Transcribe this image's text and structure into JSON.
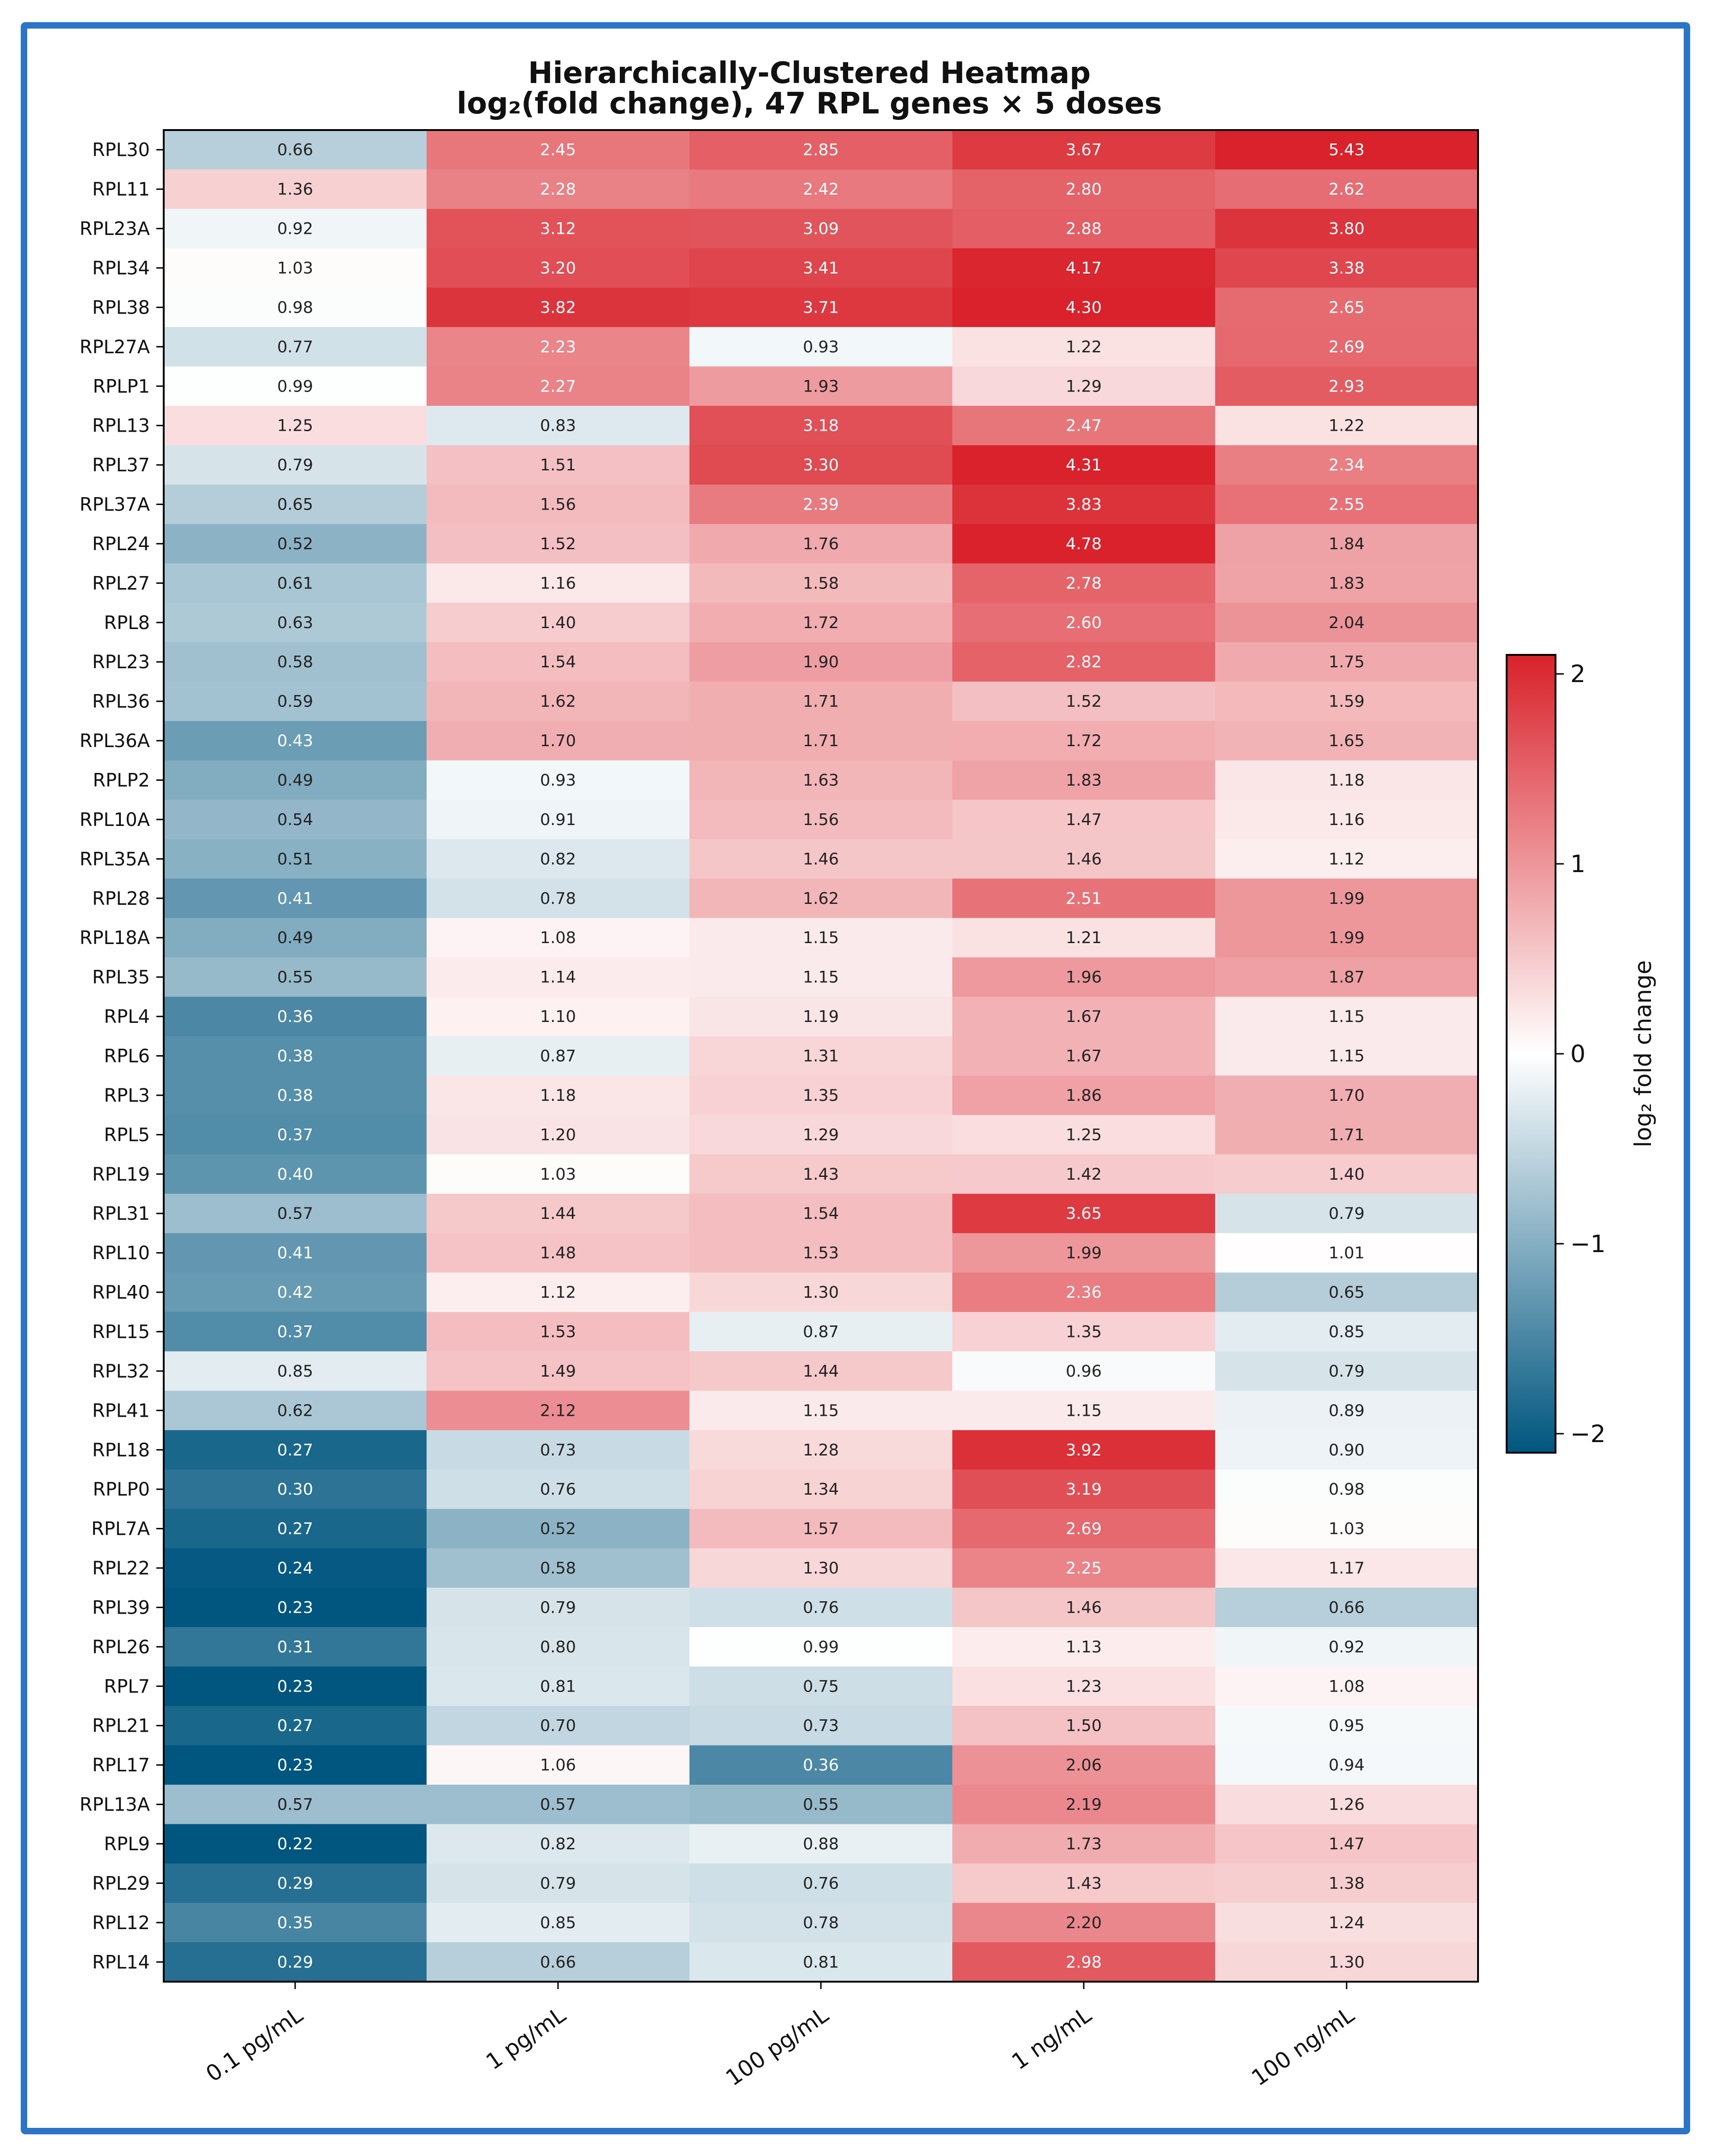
{
  "chart_data": {
    "type": "heatmap",
    "title": "Hierarchically-Clustered Heatmap",
    "subtitle": "log₂(fold change), 47 RPL genes × 5 doses",
    "colorbar_label": "log₂ fold change",
    "colorbar_ticks": [
      2,
      1,
      0,
      -1,
      -2
    ],
    "colorbar_tick_labels": [
      "2",
      "1",
      "0",
      "−1",
      "−2"
    ],
    "color_range": [
      -2.1,
      2.1
    ],
    "colors": {
      "low": "#00567f",
      "mid": "#ffffff",
      "high": "#d9222b"
    },
    "columns": [
      "0.1 pg/mL",
      "1 pg/mL",
      "100 pg/mL",
      "1 ng/mL",
      "100 ng/mL"
    ],
    "rows": [
      {
        "gene": "RPL30",
        "values": [
          "0.66",
          "2.45",
          "2.85",
          "3.67",
          "5.43"
        ]
      },
      {
        "gene": "RPL11",
        "values": [
          "1.36",
          "2.28",
          "2.42",
          "2.80",
          "2.62"
        ]
      },
      {
        "gene": "RPL23A",
        "values": [
          "0.92",
          "3.12",
          "3.09",
          "2.88",
          "3.80"
        ]
      },
      {
        "gene": "RPL34",
        "values": [
          "1.03",
          "3.20",
          "3.41",
          "4.17",
          "3.38"
        ]
      },
      {
        "gene": "RPL38",
        "values": [
          "0.98",
          "3.82",
          "3.71",
          "4.30",
          "2.65"
        ]
      },
      {
        "gene": "RPL27A",
        "values": [
          "0.77",
          "2.23",
          "0.93",
          "1.22",
          "2.69"
        ]
      },
      {
        "gene": "RPLP1",
        "values": [
          "0.99",
          "2.27",
          "1.93",
          "1.29",
          "2.93"
        ]
      },
      {
        "gene": "RPL13",
        "values": [
          "1.25",
          "0.83",
          "3.18",
          "2.47",
          "1.22"
        ]
      },
      {
        "gene": "RPL37",
        "values": [
          "0.79",
          "1.51",
          "3.30",
          "4.31",
          "2.34"
        ]
      },
      {
        "gene": "RPL37A",
        "values": [
          "0.65",
          "1.56",
          "2.39",
          "3.83",
          "2.55"
        ]
      },
      {
        "gene": "RPL24",
        "values": [
          "0.52",
          "1.52",
          "1.76",
          "4.78",
          "1.84"
        ]
      },
      {
        "gene": "RPL27",
        "values": [
          "0.61",
          "1.16",
          "1.58",
          "2.78",
          "1.83"
        ]
      },
      {
        "gene": "RPL8",
        "values": [
          "0.63",
          "1.40",
          "1.72",
          "2.60",
          "2.04"
        ]
      },
      {
        "gene": "RPL23",
        "values": [
          "0.58",
          "1.54",
          "1.90",
          "2.82",
          "1.75"
        ]
      },
      {
        "gene": "RPL36",
        "values": [
          "0.59",
          "1.62",
          "1.71",
          "1.52",
          "1.59"
        ]
      },
      {
        "gene": "RPL36A",
        "values": [
          "0.43",
          "1.70",
          "1.71",
          "1.72",
          "1.65"
        ]
      },
      {
        "gene": "RPLP2",
        "values": [
          "0.49",
          "0.93",
          "1.63",
          "1.83",
          "1.18"
        ]
      },
      {
        "gene": "RPL10A",
        "values": [
          "0.54",
          "0.91",
          "1.56",
          "1.47",
          "1.16"
        ]
      },
      {
        "gene": "RPL35A",
        "values": [
          "0.51",
          "0.82",
          "1.46",
          "1.46",
          "1.12"
        ]
      },
      {
        "gene": "RPL28",
        "values": [
          "0.41",
          "0.78",
          "1.62",
          "2.51",
          "1.99"
        ]
      },
      {
        "gene": "RPL18A",
        "values": [
          "0.49",
          "1.08",
          "1.15",
          "1.21",
          "1.99"
        ]
      },
      {
        "gene": "RPL35",
        "values": [
          "0.55",
          "1.14",
          "1.15",
          "1.96",
          "1.87"
        ]
      },
      {
        "gene": "RPL4",
        "values": [
          "0.36",
          "1.10",
          "1.19",
          "1.67",
          "1.15"
        ]
      },
      {
        "gene": "RPL6",
        "values": [
          "0.38",
          "0.87",
          "1.31",
          "1.67",
          "1.15"
        ]
      },
      {
        "gene": "RPL3",
        "values": [
          "0.38",
          "1.18",
          "1.35",
          "1.86",
          "1.70"
        ]
      },
      {
        "gene": "RPL5",
        "values": [
          "0.37",
          "1.20",
          "1.29",
          "1.25",
          "1.71"
        ]
      },
      {
        "gene": "RPL19",
        "values": [
          "0.40",
          "1.03",
          "1.43",
          "1.42",
          "1.40"
        ]
      },
      {
        "gene": "RPL31",
        "values": [
          "0.57",
          "1.44",
          "1.54",
          "3.65",
          "0.79"
        ]
      },
      {
        "gene": "RPL10",
        "values": [
          "0.41",
          "1.48",
          "1.53",
          "1.99",
          "1.01"
        ]
      },
      {
        "gene": "RPL40",
        "values": [
          "0.42",
          "1.12",
          "1.30",
          "2.36",
          "0.65"
        ]
      },
      {
        "gene": "RPL15",
        "values": [
          "0.37",
          "1.53",
          "0.87",
          "1.35",
          "0.85"
        ]
      },
      {
        "gene": "RPL32",
        "values": [
          "0.85",
          "1.49",
          "1.44",
          "0.96",
          "0.79"
        ]
      },
      {
        "gene": "RPL41",
        "values": [
          "0.62",
          "2.12",
          "1.15",
          "1.15",
          "0.89"
        ]
      },
      {
        "gene": "RPL18",
        "values": [
          "0.27",
          "0.73",
          "1.28",
          "3.92",
          "0.90"
        ]
      },
      {
        "gene": "RPLP0",
        "values": [
          "0.30",
          "0.76",
          "1.34",
          "3.19",
          "0.98"
        ]
      },
      {
        "gene": "RPL7A",
        "values": [
          "0.27",
          "0.52",
          "1.57",
          "2.69",
          "1.03"
        ]
      },
      {
        "gene": "RPL22",
        "values": [
          "0.24",
          "0.58",
          "1.30",
          "2.25",
          "1.17"
        ]
      },
      {
        "gene": "RPL39",
        "values": [
          "0.23",
          "0.79",
          "0.76",
          "1.46",
          "0.66"
        ]
      },
      {
        "gene": "RPL26",
        "values": [
          "0.31",
          "0.80",
          "0.99",
          "1.13",
          "0.92"
        ]
      },
      {
        "gene": "RPL7",
        "values": [
          "0.23",
          "0.81",
          "0.75",
          "1.23",
          "1.08"
        ]
      },
      {
        "gene": "RPL21",
        "values": [
          "0.27",
          "0.70",
          "0.73",
          "1.50",
          "0.95"
        ]
      },
      {
        "gene": "RPL17",
        "values": [
          "0.23",
          "1.06",
          "0.36",
          "2.06",
          "0.94"
        ]
      },
      {
        "gene": "RPL13A",
        "values": [
          "0.57",
          "0.57",
          "0.55",
          "2.19",
          "1.26"
        ]
      },
      {
        "gene": "RPL9",
        "values": [
          "0.22",
          "0.82",
          "0.88",
          "1.73",
          "1.47"
        ]
      },
      {
        "gene": "RPL29",
        "values": [
          "0.29",
          "0.79",
          "0.76",
          "1.43",
          "1.38"
        ]
      },
      {
        "gene": "RPL12",
        "values": [
          "0.35",
          "0.85",
          "0.78",
          "2.20",
          "1.24"
        ]
      },
      {
        "gene": "RPL14",
        "values": [
          "0.29",
          "0.66",
          "0.81",
          "2.98",
          "1.30"
        ]
      }
    ]
  }
}
